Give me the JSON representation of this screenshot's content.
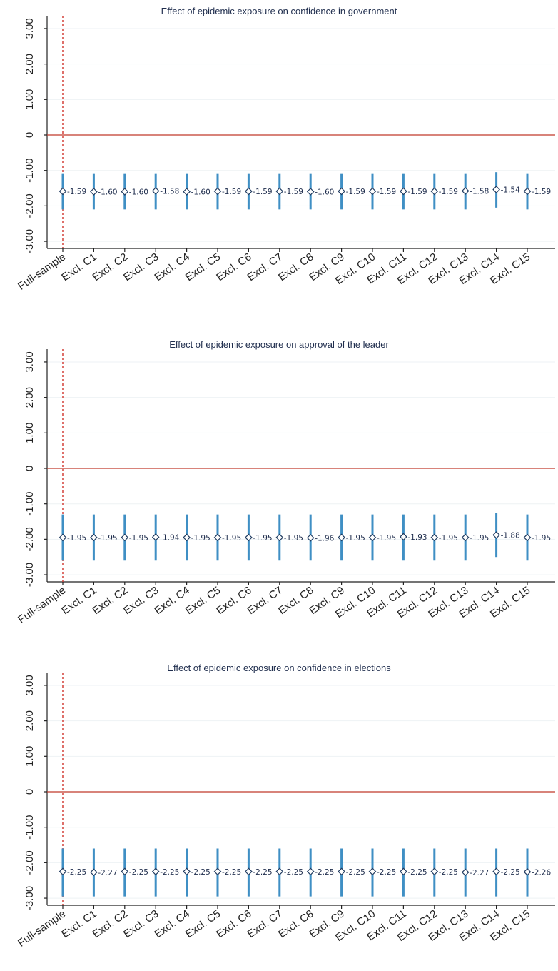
{
  "chart_data": [
    {
      "type": "scatter",
      "title": "Effect of epidemic exposure on confidence in government",
      "categories": [
        "Full-sample",
        "Excl. C1",
        "Excl. C2",
        "Excl. C3",
        "Excl. C4",
        "Excl. C5",
        "Excl. C6",
        "Excl. C7",
        "Excl. C8",
        "Excl. C9",
        "Excl. C10",
        "Excl. C11",
        "Excl. C12",
        "Excl. C13",
        "Excl. C14",
        "Excl. C15"
      ],
      "values": [
        -1.59,
        -1.6,
        -1.6,
        -1.58,
        -1.6,
        -1.59,
        -1.59,
        -1.59,
        -1.6,
        -1.59,
        -1.59,
        -1.59,
        -1.59,
        -1.58,
        -1.54,
        -1.59
      ],
      "value_labels": [
        "-1.59",
        "-1.60",
        "-1.60",
        "-1.58",
        "-1.60",
        "-1.59",
        "-1.59",
        "-1.59",
        "-1.60",
        "-1.59",
        "-1.59",
        "-1.59",
        "-1.59",
        "-1.58",
        "-1.54",
        "-1.59"
      ],
      "ci_low": [
        -2.1,
        -2.1,
        -2.1,
        -2.1,
        -2.1,
        -2.1,
        -2.1,
        -2.1,
        -2.1,
        -2.1,
        -2.1,
        -2.1,
        -2.1,
        -2.1,
        -2.05,
        -2.1
      ],
      "ci_high": [
        -1.1,
        -1.1,
        -1.1,
        -1.1,
        -1.1,
        -1.1,
        -1.1,
        -1.1,
        -1.1,
        -1.1,
        -1.1,
        -1.1,
        -1.1,
        -1.1,
        -1.05,
        -1.1
      ],
      "yticks": [
        "3.00",
        "2.00",
        "1.00",
        "0",
        "-1.00",
        "-2.00",
        "-3.00"
      ],
      "ytick_values": [
        3,
        2,
        1,
        0,
        -1,
        -2,
        -3
      ],
      "ylim": [
        -3.2,
        3.2
      ],
      "reference_line": 0
    },
    {
      "type": "scatter",
      "title": "Effect of epidemic exposure on approval of the leader",
      "categories": [
        "Full-sample",
        "Excl. C1",
        "Excl. C2",
        "Excl. C3",
        "Excl. C4",
        "Excl. C5",
        "Excl. C6",
        "Excl. C7",
        "Excl. C8",
        "Excl. C9",
        "Excl. C10",
        "Excl. C11",
        "Excl. C12",
        "Excl. C13",
        "Excl. C14",
        "Excl. C15"
      ],
      "values": [
        -1.95,
        -1.95,
        -1.95,
        -1.94,
        -1.95,
        -1.95,
        -1.95,
        -1.95,
        -1.96,
        -1.95,
        -1.95,
        -1.93,
        -1.95,
        -1.95,
        -1.88,
        -1.95
      ],
      "value_labels": [
        "-1.95",
        "-1.95",
        "-1.95",
        "-1.94",
        "-1.95",
        "-1.95",
        "-1.95",
        "-1.95",
        "-1.96",
        "-1.95",
        "-1.95",
        "-1.93",
        "-1.95",
        "-1.95",
        "-1.88",
        "-1.95"
      ],
      "ci_low": [
        -2.6,
        -2.6,
        -2.6,
        -2.6,
        -2.6,
        -2.6,
        -2.6,
        -2.6,
        -2.6,
        -2.6,
        -2.6,
        -2.6,
        -2.6,
        -2.6,
        -2.5,
        -2.6
      ],
      "ci_high": [
        -1.3,
        -1.3,
        -1.3,
        -1.3,
        -1.3,
        -1.3,
        -1.3,
        -1.3,
        -1.3,
        -1.3,
        -1.3,
        -1.3,
        -1.3,
        -1.3,
        -1.25,
        -1.3
      ],
      "yticks": [
        "3.00",
        "2.00",
        "1.00",
        "0",
        "-1.00",
        "-2.00",
        "-3.00"
      ],
      "ytick_values": [
        3,
        2,
        1,
        0,
        -1,
        -2,
        -3
      ],
      "ylim": [
        -3.2,
        3.2
      ],
      "reference_line": 0
    },
    {
      "type": "scatter",
      "title": "Effect of epidemic exposure on confidence in elections",
      "categories": [
        "Full-sample",
        "Excl. C1",
        "Excl. C2",
        "Excl. C3",
        "Excl. C4",
        "Excl. C5",
        "Excl. C6",
        "Excl. C7",
        "Excl. C8",
        "Excl. C9",
        "Excl. C10",
        "Excl. C11",
        "Excl. C12",
        "Excl. C13",
        "Excl. C14",
        "Excl. C15"
      ],
      "values": [
        -2.25,
        -2.27,
        -2.25,
        -2.25,
        -2.25,
        -2.25,
        -2.25,
        -2.25,
        -2.25,
        -2.25,
        -2.25,
        -2.25,
        -2.25,
        -2.27,
        -2.25,
        -2.26
      ],
      "value_labels": [
        "-2.25",
        "-2.27",
        "-2.25",
        "-2.25",
        "-2.25",
        "-2.25",
        "-2.25",
        "-2.25",
        "-2.25",
        "-2.25",
        "-2.25",
        "-2.25",
        "-2.25",
        "-2.27",
        "-2.25",
        "-2.26"
      ],
      "ci_low": [
        -2.95,
        -2.95,
        -2.95,
        -2.95,
        -2.95,
        -2.95,
        -2.95,
        -2.95,
        -2.95,
        -2.95,
        -2.95,
        -2.95,
        -2.95,
        -2.95,
        -2.95,
        -2.95
      ],
      "ci_high": [
        -1.6,
        -1.6,
        -1.6,
        -1.6,
        -1.6,
        -1.6,
        -1.6,
        -1.6,
        -1.6,
        -1.6,
        -1.6,
        -1.6,
        -1.6,
        -1.6,
        -1.6,
        -1.6
      ],
      "yticks": [
        "3.00",
        "2.00",
        "1.00",
        "0",
        "-1.00",
        "-2.00",
        "-3.00"
      ],
      "ytick_values": [
        3,
        2,
        1,
        0,
        -1,
        -2,
        -3
      ],
      "ylim": [
        -3.2,
        3.2
      ],
      "reference_line": 0
    }
  ],
  "colors": {
    "ci_bar": "#3f8fc4",
    "marker_stroke": "#1f3a5f",
    "marker_fill": "#ffffff",
    "zero_line": "#c0392b",
    "reference_vline": "#d0322b",
    "axis": "#222222",
    "title": "#1f2d4d"
  }
}
